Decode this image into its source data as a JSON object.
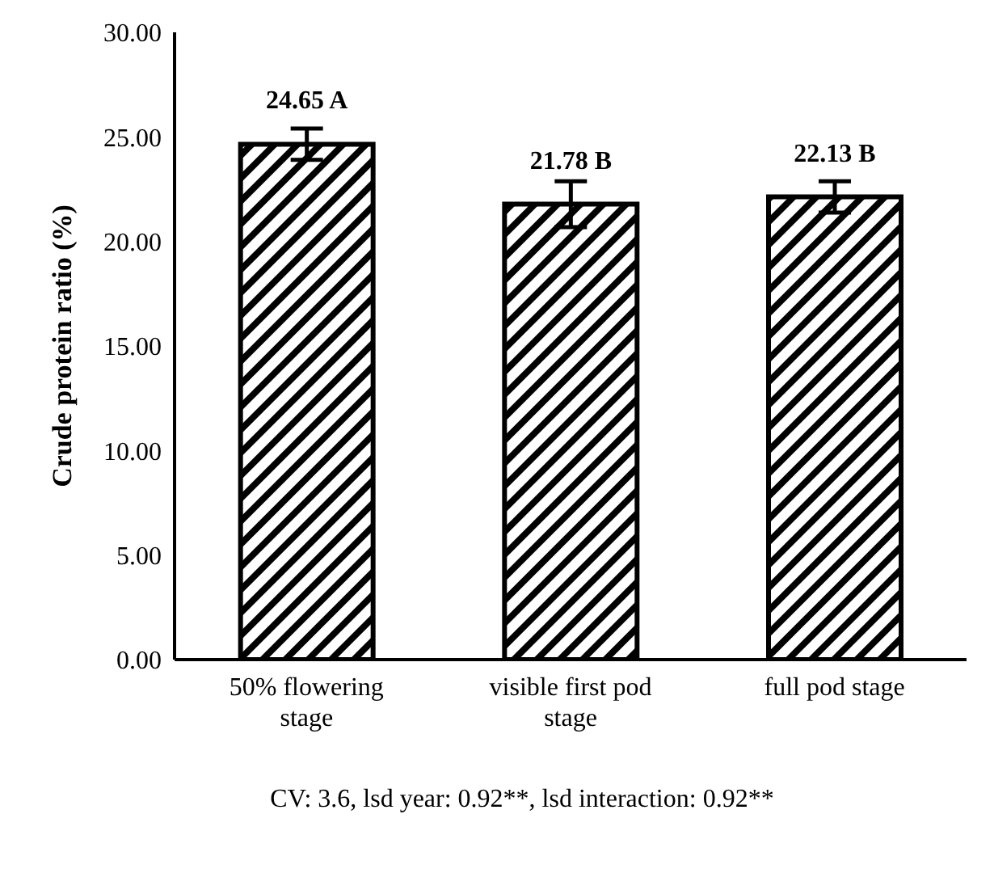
{
  "chart_data": {
    "type": "bar",
    "ylabel": "Crude protein ratio (%)",
    "categories": [
      "50% flowering stage",
      "visible first pod stage",
      "full pod stage"
    ],
    "values": [
      24.65,
      21.78,
      22.13
    ],
    "errors": [
      0.75,
      1.1,
      0.75
    ],
    "value_labels": [
      "24.65 A",
      "21.78 B",
      "22.13 B"
    ],
    "color": "#000000",
    "ylim": [
      0,
      30
    ],
    "yticks": [
      {
        "value": 0,
        "label": "0.00"
      },
      {
        "value": 5,
        "label": "5.00"
      },
      {
        "value": 10,
        "label": "10.00"
      },
      {
        "value": 15,
        "label": "15.00"
      },
      {
        "value": 20,
        "label": "20.00"
      },
      {
        "value": 25,
        "label": "25.00"
      },
      {
        "value": 30,
        "label": "30.00"
      }
    ],
    "grid": false,
    "legend": false,
    "annotations": [
      "CV: 3.6, lsd year: 0.92**, lsd interaction: 0.92**"
    ]
  }
}
